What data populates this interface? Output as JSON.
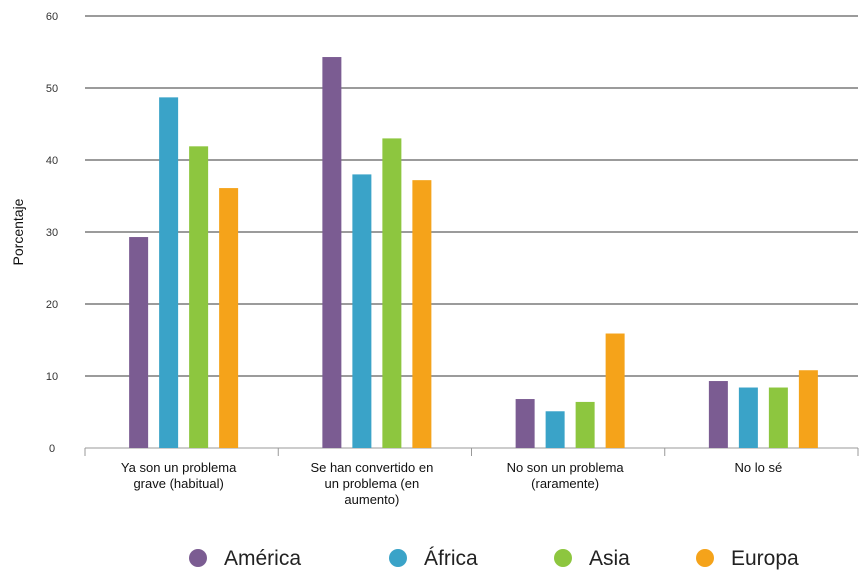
{
  "chart_data": {
    "type": "bar",
    "title": "",
    "xlabel": "",
    "ylabel": "Porcentaje",
    "ylim": [
      0,
      60
    ],
    "yticks": [
      0,
      10,
      20,
      30,
      40,
      50,
      60
    ],
    "grid": true,
    "legend_position": "bottom",
    "categories": [
      [
        "Ya son un problema",
        "grave (habitual)"
      ],
      [
        "Se han convertido en",
        "un problema (en",
        "aumento)"
      ],
      [
        "No son un problema",
        "(raramente)"
      ],
      [
        "No lo sé"
      ]
    ],
    "series": [
      {
        "name": "América",
        "color": "#7b5c92",
        "values": [
          29.3,
          54.3,
          6.8,
          9.3
        ]
      },
      {
        "name": "África",
        "color": "#3aa3c8",
        "values": [
          48.7,
          38.0,
          5.1,
          8.4
        ]
      },
      {
        "name": "Asia",
        "color": "#8dc63f",
        "values": [
          41.9,
          43.0,
          6.4,
          8.4
        ]
      },
      {
        "name": "Europa",
        "color": "#f5a31a",
        "values": [
          36.1,
          37.2,
          15.9,
          10.8
        ]
      }
    ]
  }
}
